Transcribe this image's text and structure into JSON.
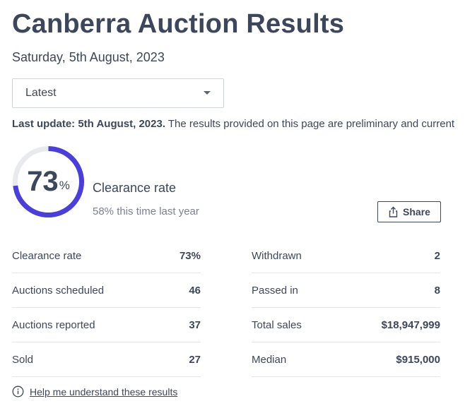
{
  "header": {
    "title": "Canberra Auction Results",
    "date": "Saturday, 5th August, 2023"
  },
  "filter": {
    "selected": "Latest"
  },
  "update": {
    "label": "Last update: 5th August, 2023.",
    "text": " The results provided on this page are preliminary and current"
  },
  "clearance": {
    "value": "73",
    "percent_sign": "%",
    "rate_fraction": 0.73,
    "label": "Clearance rate",
    "last_year": "58% this time last year",
    "ring_color": "#4a3fd6",
    "track_color": "#e8eaee"
  },
  "share": {
    "label": "Share"
  },
  "stats": {
    "left": [
      {
        "label": "Clearance rate",
        "value": "73%"
      },
      {
        "label": "Auctions scheduled",
        "value": "46"
      },
      {
        "label": "Auctions reported",
        "value": "37"
      },
      {
        "label": "Sold",
        "value": "27"
      }
    ],
    "right": [
      {
        "label": "Withdrawn",
        "value": "2"
      },
      {
        "label": "Passed in",
        "value": "8"
      },
      {
        "label": "Total sales",
        "value": "$18,947,999"
      },
      {
        "label": "Median",
        "value": "$915,000"
      }
    ]
  },
  "help": {
    "icon": "info-icon",
    "link": "Help me understand these results"
  }
}
